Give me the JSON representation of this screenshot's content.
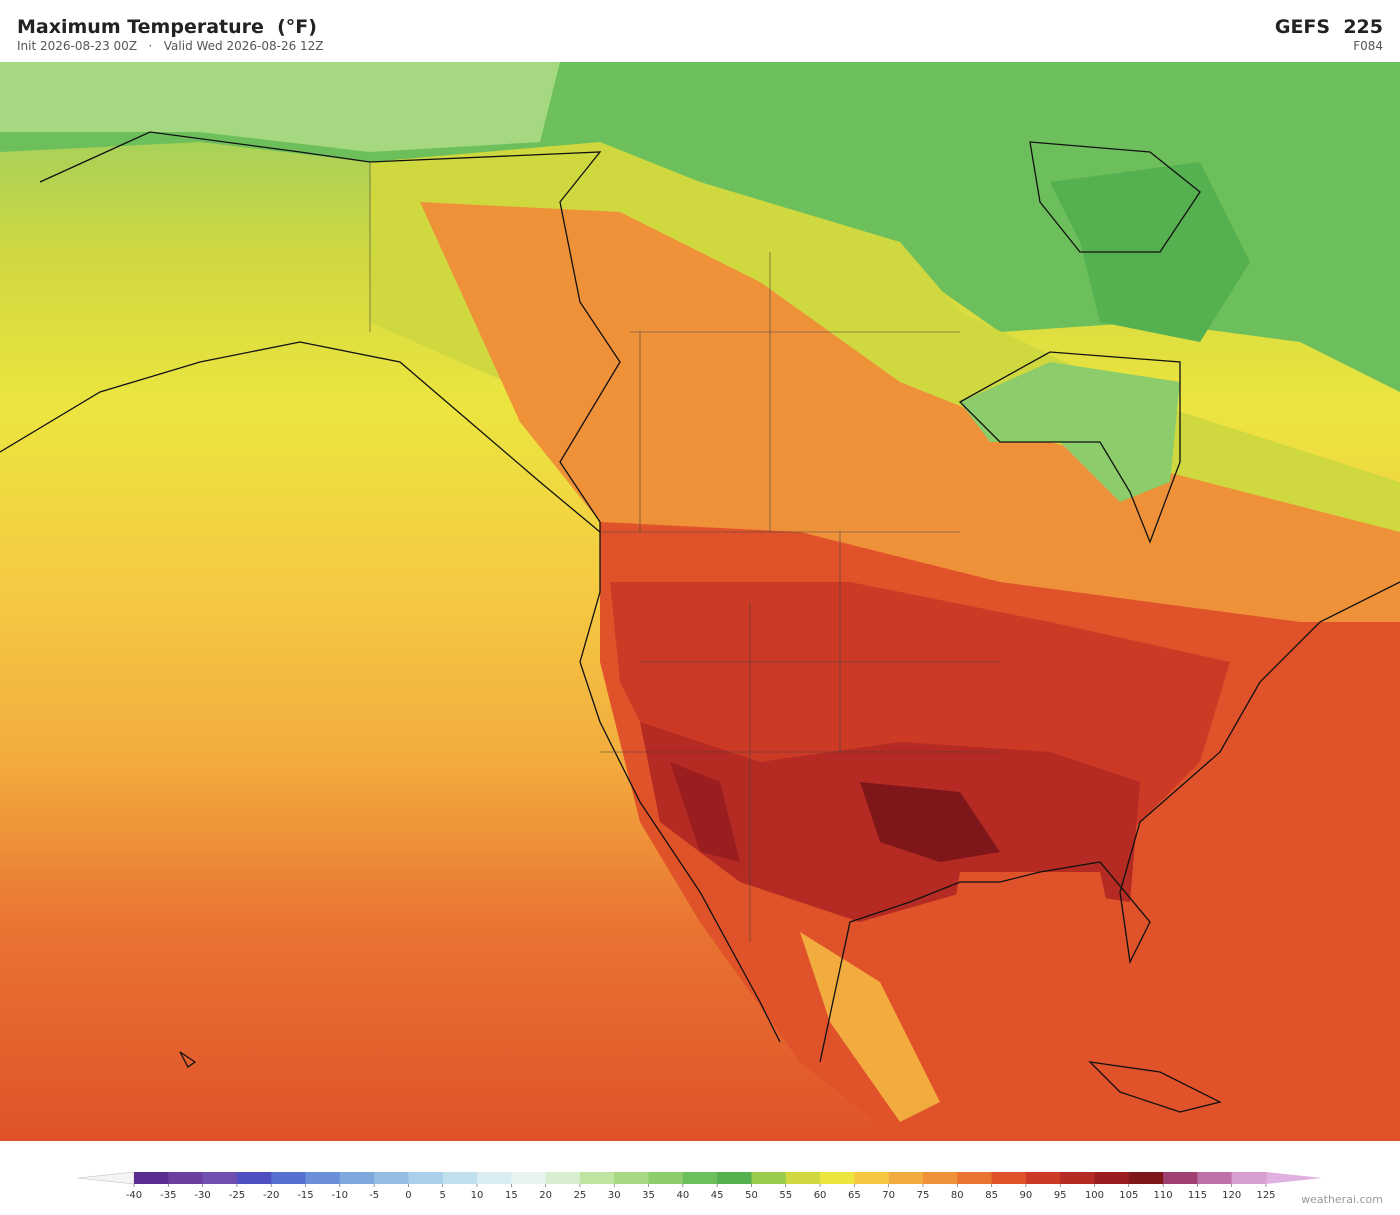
{
  "header": {
    "title": "Maximum Temperature  (°F)",
    "init": "Init 2026-08-23 00Z",
    "separator": "·",
    "valid": "Valid Wed 2026-08-26 12Z",
    "model": "GEFS  225",
    "forecast_hour": "F084"
  },
  "colorbar": {
    "ticks": [
      -40,
      -35,
      -30,
      -25,
      -20,
      -15,
      -10,
      -5,
      0,
      5,
      10,
      15,
      20,
      25,
      30,
      35,
      40,
      45,
      50,
      55,
      60,
      65,
      70,
      75,
      80,
      85,
      90,
      95,
      100,
      105,
      110,
      115,
      120,
      125
    ],
    "colors": [
      "#5a2d91",
      "#6b3fa0",
      "#6f4fb0",
      "#4e4fc0",
      "#5470d0",
      "#6a8fd8",
      "#7ea8dc",
      "#95bde3",
      "#a8d0ea",
      "#c0e0ee",
      "#d8ecf2",
      "#e8f4ee",
      "#d8eed0",
      "#bfe3a0",
      "#a5d880",
      "#8ccc6a",
      "#6cbf5a",
      "#55b050",
      "#9acb4a",
      "#d0d840",
      "#ece540",
      "#f5c842",
      "#f2ab3e",
      "#ee9138",
      "#e97432",
      "#e0522a",
      "#cc3a26",
      "#b52a22",
      "#9a1e20",
      "#7f1619",
      "#a04070",
      "#c070a8",
      "#d8a0d0"
    ],
    "under_color": "#f4f4f4",
    "over_color": "#e0b0e0"
  },
  "footer": {
    "credit": "weatherai.com"
  }
}
